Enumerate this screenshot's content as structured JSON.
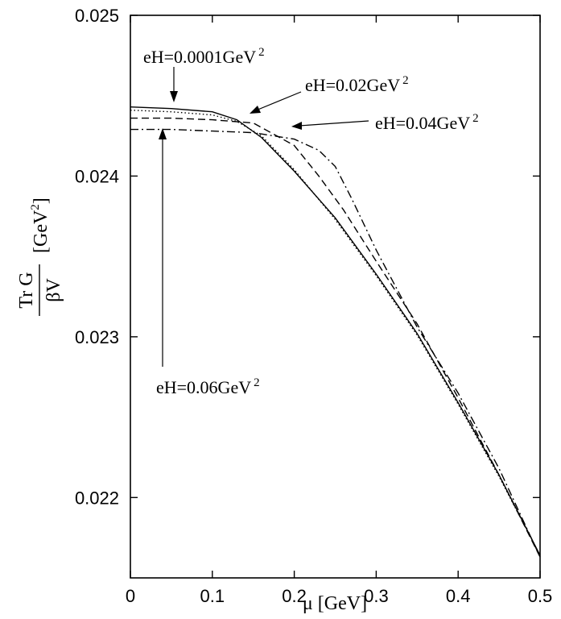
{
  "chart_data": {
    "type": "line",
    "xlabel": "μ [GeV]",
    "ylabel": {
      "numerator": "Tr G",
      "denominator": "βV",
      "unit": "[GeV",
      "unit_exp": "2",
      "unit_close": "]"
    },
    "xlim": [
      0,
      0.5
    ],
    "ylim": [
      0.0215,
      0.025
    ],
    "x_ticks": [
      0,
      0.1,
      0.2,
      0.3,
      0.4,
      0.5
    ],
    "x_tick_labels": [
      "0",
      "0.1",
      "0.2",
      "0.3",
      "0.4",
      "0.5"
    ],
    "y_ticks": [
      0.022,
      0.023,
      0.024,
      0.025
    ],
    "y_tick_labels": [
      "0.022",
      "0.023",
      "0.024",
      "0.025"
    ],
    "grid": false,
    "series": [
      {
        "name": "eH=0.0001GeV 2",
        "style": "solid",
        "x": [
          0,
          0.05,
          0.1,
          0.13,
          0.16,
          0.2,
          0.25,
          0.3,
          0.35,
          0.4,
          0.45,
          0.5
        ],
        "y": [
          0.02443,
          0.02442,
          0.0244,
          0.02435,
          0.02424,
          0.02403,
          0.02374,
          0.02339,
          0.02302,
          0.02259,
          0.02214,
          0.02164
        ]
      },
      {
        "name": "eH=0.02GeV 2",
        "style": "dotted",
        "x": [
          0,
          0.05,
          0.1,
          0.13,
          0.16,
          0.2,
          0.25,
          0.3,
          0.35,
          0.4,
          0.45,
          0.5
        ],
        "y": [
          0.02441,
          0.0244,
          0.02438,
          0.02434,
          0.02425,
          0.02404,
          0.02373,
          0.02338,
          0.02301,
          0.02258,
          0.02213,
          0.02164
        ]
      },
      {
        "name": "eH=0.04GeV 2",
        "style": "dashed",
        "x": [
          0,
          0.05,
          0.1,
          0.15,
          0.2,
          0.23,
          0.26,
          0.3,
          0.35,
          0.4,
          0.45,
          0.5
        ],
        "y": [
          0.02436,
          0.02436,
          0.02435,
          0.02433,
          0.02419,
          0.024,
          0.02379,
          0.02347,
          0.02308,
          0.02262,
          0.02214,
          0.02163
        ]
      },
      {
        "name": "eH=0.06GeV 2",
        "style": "dashdot",
        "x": [
          0,
          0.05,
          0.1,
          0.15,
          0.2,
          0.23,
          0.25,
          0.27,
          0.3,
          0.35,
          0.4,
          0.45,
          0.5
        ],
        "y": [
          0.02429,
          0.02429,
          0.02428,
          0.02427,
          0.02423,
          0.02416,
          0.02406,
          0.02386,
          0.02354,
          0.02306,
          0.02265,
          0.02218,
          0.02163
        ]
      }
    ],
    "annotations": [
      {
        "text": "eH=0.0001GeV",
        "sup": "2",
        "series": 0
      },
      {
        "text": "eH=0.02GeV",
        "sup": "2",
        "series": 1
      },
      {
        "text": "eH=0.04GeV",
        "sup": "2",
        "series": 2
      },
      {
        "text": "eH=0.06GeV",
        "sup": "2",
        "series": 3
      }
    ]
  }
}
